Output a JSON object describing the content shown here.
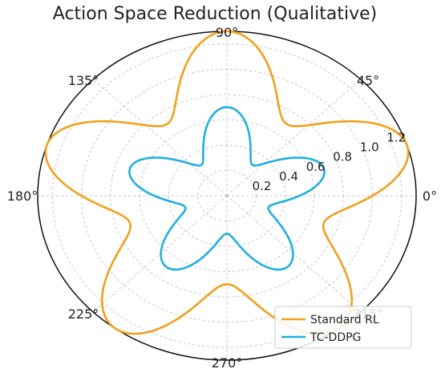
{
  "chart_data": {
    "type": "line",
    "projection": "polar",
    "title": "Action Space Reduction (Qualitative)",
    "theta_ticks": [
      {
        "deg": 0,
        "label": "0°"
      },
      {
        "deg": 45,
        "label": "45°"
      },
      {
        "deg": 90,
        "label": "90°"
      },
      {
        "deg": 135,
        "label": "135°"
      },
      {
        "deg": 180,
        "label": "180°"
      },
      {
        "deg": 225,
        "label": "225°"
      },
      {
        "deg": 270,
        "label": "270°"
      },
      {
        "deg": 315,
        "label": "315°"
      }
    ],
    "r_ticks": [
      {
        "value": 0.2,
        "label": "0.2"
      },
      {
        "value": 0.4,
        "label": "0.4"
      },
      {
        "value": 0.6,
        "label": "0.6"
      },
      {
        "value": 0.8,
        "label": "0.8"
      },
      {
        "value": 1.0,
        "label": "1.0"
      },
      {
        "value": 1.2,
        "label": "1.2"
      }
    ],
    "rlim": [
      0,
      1.3
    ],
    "grid": true,
    "legend_position": "lower-right",
    "series": [
      {
        "name": "Standard RL",
        "color": "#f0a01c",
        "function": "1.0 + 0.3*sin(5*theta)"
      },
      {
        "name": "TC-DDPG",
        "color": "#1fb0e0",
        "function": "0.5 + 0.2*sin(5*theta)"
      }
    ]
  }
}
